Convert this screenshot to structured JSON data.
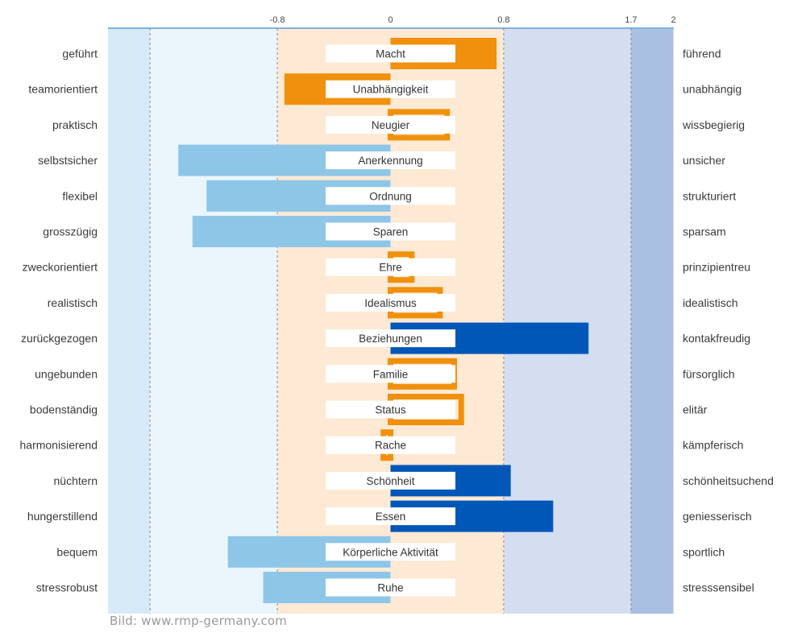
{
  "chart_data": {
    "type": "bar",
    "orientation": "horizontal",
    "title": "",
    "xlim": [
      -2,
      2
    ],
    "ticks": [
      {
        "value": -0.8,
        "label": "-0.8"
      },
      {
        "value": 0,
        "label": "0"
      },
      {
        "value": 0.8,
        "label": "0.8"
      },
      {
        "value": 1.7,
        "label": "1.7"
      },
      {
        "value": 2,
        "label": "2"
      }
    ],
    "bands": [
      {
        "from": -2,
        "to": -1.7,
        "color": "#d6eaf8"
      },
      {
        "from": -1.7,
        "to": -0.8,
        "color": "#eaf5fc"
      },
      {
        "from": -0.8,
        "to": 0.8,
        "color": "#fde9d4"
      },
      {
        "from": 0.8,
        "to": 1.7,
        "color": "#d5def0"
      },
      {
        "from": 1.7,
        "to": 2,
        "color": "#a9c0e3"
      }
    ],
    "dashed_lines": [
      -1.7,
      -0.8,
      0.8,
      1.7
    ],
    "colors": {
      "light_blue": "#8ec6e8",
      "orange": "#f0900c",
      "dark_blue": "#0057b8",
      "label_box": "#ffffff"
    },
    "motives": [
      {
        "motive": "Macht",
        "left": "geführt",
        "right": "führend",
        "value": 0.75,
        "style": "solid_orange"
      },
      {
        "motive": "Unabhängigkeit",
        "left": "teamorientiert",
        "right": "unabhängig",
        "value": -0.75,
        "style": "solid_orange"
      },
      {
        "motive": "Neugier",
        "left": "praktisch",
        "right": "wissbegierig",
        "value": 0.4,
        "style": "outline_orange"
      },
      {
        "motive": "Anerkennung",
        "left": "selbstsicher",
        "right": "unsicher",
        "value": -1.5,
        "style": "light_blue"
      },
      {
        "motive": "Ordnung",
        "left": "flexibel",
        "right": "strukturiert",
        "value": -1.3,
        "style": "light_blue"
      },
      {
        "motive": "Sparen",
        "left": "grosszügig",
        "right": "sparsam",
        "value": -1.4,
        "style": "light_blue"
      },
      {
        "motive": "Ehre",
        "left": "zweckorientiert",
        "right": "prinzipientreu",
        "value": 0.15,
        "style": "outline_orange"
      },
      {
        "motive": "Idealismus",
        "left": "realistisch",
        "right": "idealistisch",
        "value": 0.35,
        "style": "outline_orange"
      },
      {
        "motive": "Beziehungen",
        "left": "zurückgezogen",
        "right": "kontakfreudig",
        "value": 1.4,
        "style": "dark_blue"
      },
      {
        "motive": "Familie",
        "left": "ungebunden",
        "right": "fürsorglich",
        "value": 0.45,
        "style": "outline_orange"
      },
      {
        "motive": "Status",
        "left": "bodenständig",
        "right": "elitär",
        "value": 0.5,
        "style": "outline_orange"
      },
      {
        "motive": "Rache",
        "left": "harmonisierend",
        "right": "kämpferisch",
        "value": -0.05,
        "style": "outline_orange"
      },
      {
        "motive": "Schönheit",
        "left": "nüchtern",
        "right": "schönheitsuchend",
        "value": 0.85,
        "style": "dark_blue"
      },
      {
        "motive": "Essen",
        "left": "hungerstillend",
        "right": "geniesserisch",
        "value": 1.15,
        "style": "dark_blue"
      },
      {
        "motive": "Körperliche Aktivität",
        "left": "bequem",
        "right": "sportlich",
        "value": -1.15,
        "style": "light_blue"
      },
      {
        "motive": "Ruhe",
        "left": "stressrobust",
        "right": "stresssensibel",
        "value": -0.9,
        "style": "light_blue"
      }
    ]
  },
  "credit": "Bild: www.rmp-germany.com"
}
